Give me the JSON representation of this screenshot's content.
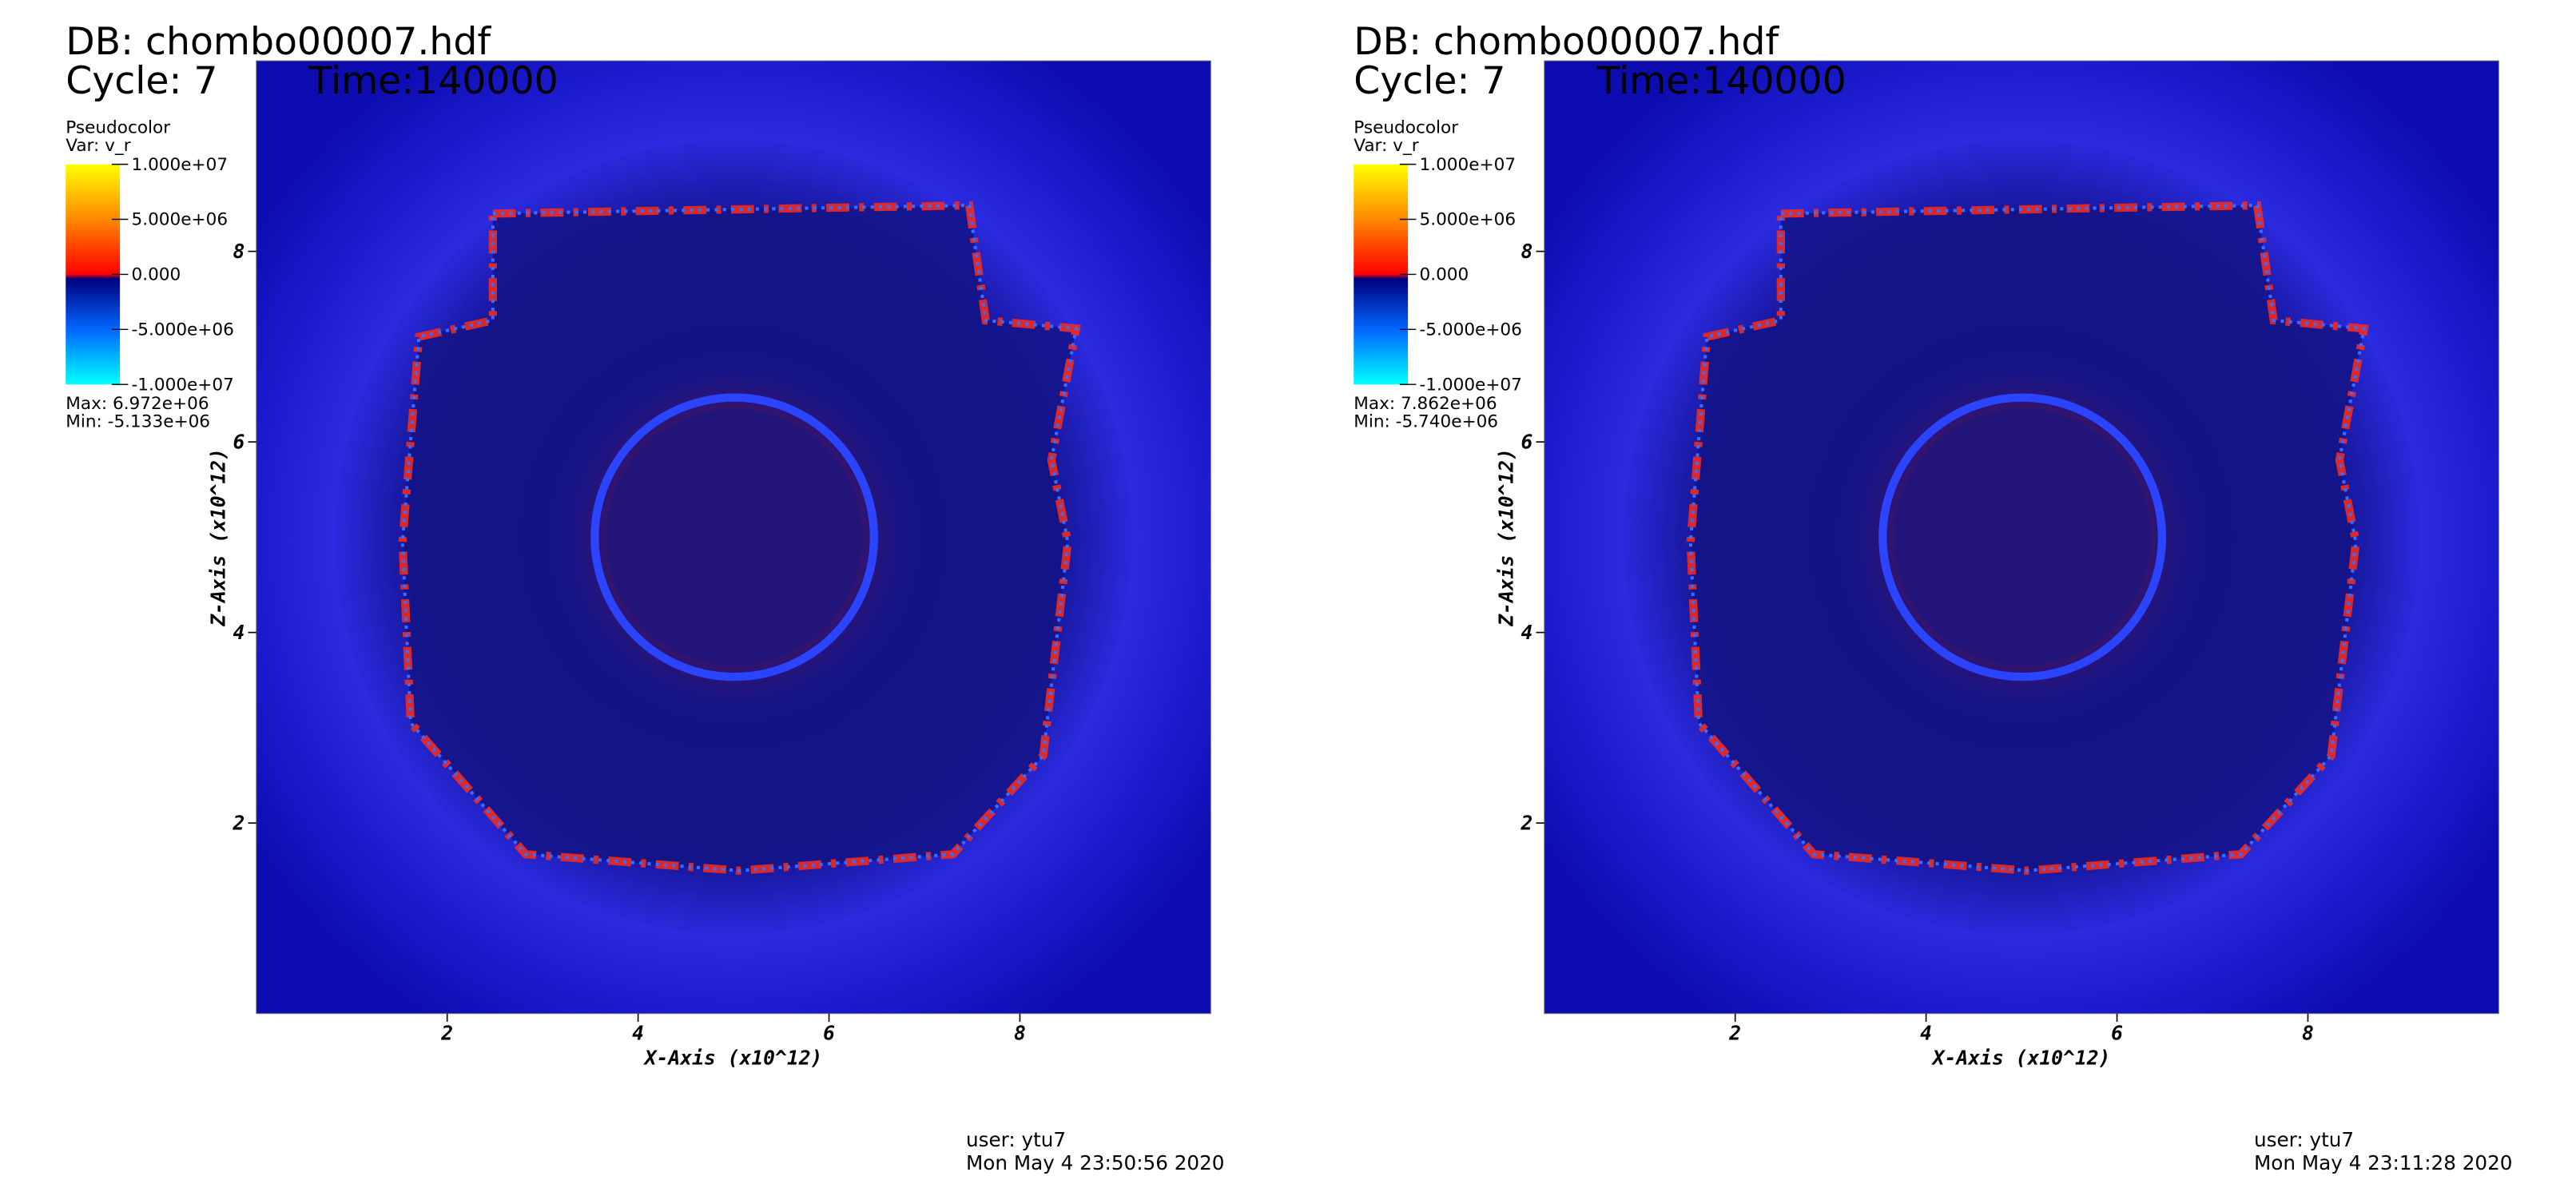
{
  "chart_data": [
    {
      "type": "pseudocolor",
      "title": "DB: chombo00007.hdf",
      "cycle": "Cycle: 7",
      "time": "Time:140000",
      "legend_title": "Pseudocolor",
      "variable": "Var: v_r",
      "colorbar_ticks": [
        {
          "value": 10000000,
          "label": "1.000e+07"
        },
        {
          "value": 5000000,
          "label": "5.000e+06"
        },
        {
          "value": 0,
          "label": "0.000"
        },
        {
          "value": -5000000,
          "label": "-5.000e+06"
        },
        {
          "value": -10000000,
          "label": "-1.000e+07"
        }
      ],
      "max": "Max:  6.972e+06",
      "min": "Min: -5.133e+06",
      "xlabel": "X-Axis (x10^12)",
      "ylabel": "Z-Axis (x10^12)",
      "xlim": [
        0,
        10
      ],
      "ylim": [
        0,
        10
      ],
      "xticks": [
        2,
        4,
        6,
        8
      ],
      "yticks": [
        2,
        4,
        6,
        8
      ],
      "user": "user: ytu7",
      "date": "Mon May  4 23:50:56 2020"
    },
    {
      "type": "pseudocolor",
      "title": "DB: chombo00007.hdf",
      "cycle": "Cycle: 7",
      "time": "Time:140000",
      "legend_title": "Pseudocolor",
      "variable": "Var: v_r",
      "colorbar_ticks": [
        {
          "value": 10000000,
          "label": "1.000e+07"
        },
        {
          "value": 5000000,
          "label": "5.000e+06"
        },
        {
          "value": 0,
          "label": "0.000"
        },
        {
          "value": -5000000,
          "label": "-5.000e+06"
        },
        {
          "value": -10000000,
          "label": "-1.000e+07"
        }
      ],
      "max": "Max:  7.862e+06",
      "min": "Min: -5.740e+06",
      "xlabel": "X-Axis (x10^12)",
      "ylabel": "Z-Axis (x10^12)",
      "xlim": [
        0,
        10
      ],
      "ylim": [
        0,
        10
      ],
      "xticks": [
        2,
        4,
        6,
        8
      ],
      "yticks": [
        2,
        4,
        6,
        8
      ],
      "user": "user: ytu7",
      "date": "Mon May  4 23:11:28 2020"
    }
  ]
}
